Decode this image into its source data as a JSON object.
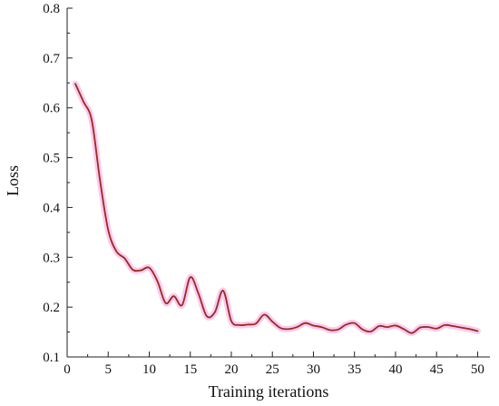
{
  "chart_data": {
    "type": "line",
    "title": "",
    "xlabel": "Training iterations",
    "ylabel": "Loss",
    "xlim": [
      0,
      51.5
    ],
    "ylim": [
      0.1,
      0.8
    ],
    "x_ticks": [
      0,
      5,
      10,
      15,
      20,
      25,
      30,
      35,
      40,
      45,
      50
    ],
    "y_ticks": [
      0.1,
      0.2,
      0.3,
      0.4,
      0.5,
      0.6,
      0.7,
      0.8
    ],
    "x_tick_labels": [
      "0",
      "5",
      "10",
      "15",
      "20",
      "25",
      "30",
      "35",
      "40",
      "45",
      "50"
    ],
    "y_tick_labels": [
      "0.1",
      "0.2",
      "0.3",
      "0.4",
      "0.5",
      "0.6",
      "0.7",
      "0.8"
    ],
    "grid": false,
    "colors": {
      "line": "#a0281c",
      "glow": "#f6c7ee",
      "axis": "#222222"
    },
    "series": [
      {
        "x": [
          1,
          2,
          3,
          4,
          5,
          6,
          7,
          8,
          9,
          10,
          11,
          12,
          13,
          14,
          15,
          16,
          17,
          18,
          19,
          20,
          21,
          22,
          23,
          24,
          25,
          26,
          27,
          28,
          29,
          30,
          31,
          32,
          33,
          34,
          35,
          36,
          37,
          38,
          39,
          40,
          41,
          42,
          43,
          44,
          45,
          46,
          47,
          48,
          49,
          50
        ],
        "y": [
          0.648,
          0.612,
          0.575,
          0.455,
          0.355,
          0.312,
          0.298,
          0.275,
          0.274,
          0.279,
          0.252,
          0.208,
          0.222,
          0.204,
          0.26,
          0.227,
          0.182,
          0.19,
          0.233,
          0.172,
          0.164,
          0.165,
          0.167,
          0.185,
          0.171,
          0.158,
          0.156,
          0.16,
          0.168,
          0.163,
          0.16,
          0.154,
          0.155,
          0.165,
          0.168,
          0.155,
          0.151,
          0.162,
          0.16,
          0.163,
          0.156,
          0.148,
          0.159,
          0.16,
          0.157,
          0.164,
          0.162,
          0.159,
          0.156,
          0.152
        ]
      }
    ]
  }
}
